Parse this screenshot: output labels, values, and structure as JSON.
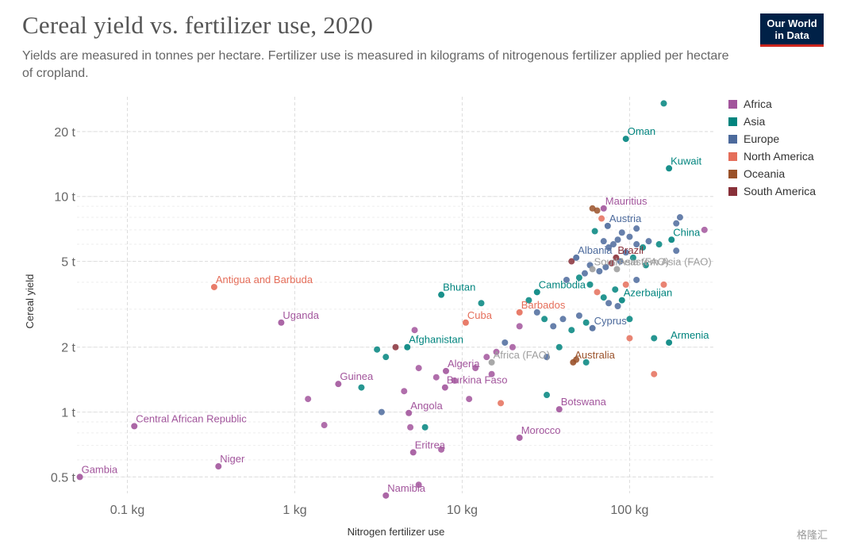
{
  "header": {
    "title": "Cereal yield vs. fertilizer use, 2020",
    "subtitle": "Yields are measured in tonnes per hectare. Fertilizer use is measured in kilograms of nitrogenous fertilizer applied per hectare of cropland.",
    "logo_line1": "Our World",
    "logo_line2": "in Data"
  },
  "watermark": "格隆汇",
  "colors": {
    "Africa": "#a2559c",
    "Asia": "#00847e",
    "Europe": "#4c6a9c",
    "North America": "#e56e5a",
    "Oceania": "#9a5129",
    "South America": "#883039",
    "Aggregate": "#9e9e9e"
  },
  "legend": [
    "Africa",
    "Asia",
    "Europe",
    "North America",
    "Oceania",
    "South America"
  ],
  "chart_data": {
    "type": "scatter",
    "xlabel": "Nitrogen fertilizer use",
    "ylabel": "Cereal yield",
    "x_scale": "log",
    "y_scale": "log",
    "xlim": [
      0.05,
      320
    ],
    "ylim": [
      0.42,
      29
    ],
    "x_ticks": [
      {
        "value": 0.1,
        "label": "0.1 kg"
      },
      {
        "value": 1,
        "label": "1 kg"
      },
      {
        "value": 10,
        "label": "10 kg"
      },
      {
        "value": 100,
        "label": "100 kg"
      }
    ],
    "y_ticks": [
      {
        "value": 0.5,
        "label": "0.5 t"
      },
      {
        "value": 1,
        "label": "1 t"
      },
      {
        "value": 2,
        "label": "2 t"
      },
      {
        "value": 5,
        "label": "5 t"
      },
      {
        "value": 10,
        "label": "10 t"
      },
      {
        "value": 20,
        "label": "20 t"
      }
    ],
    "grid": true,
    "legend_position": "top-right",
    "labeled_points": [
      {
        "label": "Oman",
        "x": 95,
        "y": 18.5,
        "group": "Asia"
      },
      {
        "label": "Kuwait",
        "x": 172,
        "y": 13.5,
        "group": "Asia"
      },
      {
        "label": "Mauritius",
        "x": 70,
        "y": 8.8,
        "group": "Africa"
      },
      {
        "label": "Austria",
        "x": 74,
        "y": 7.3,
        "group": "Europe"
      },
      {
        "label": "China",
        "x": 178,
        "y": 6.3,
        "group": "Asia"
      },
      {
        "label": "Albania",
        "x": 48,
        "y": 5.2,
        "group": "Europe"
      },
      {
        "label": "Brazil",
        "x": 83,
        "y": 5.2,
        "group": "South America"
      },
      {
        "label": "South-eastern Asia (FAO)",
        "x": 60,
        "y": 4.6,
        "group": "Aggregate"
      },
      {
        "label": "Asia (FAO)",
        "x": 84,
        "y": 4.6,
        "group": "Aggregate"
      },
      {
        "label": "Antigua and Barbuda",
        "x": 0.33,
        "y": 3.8,
        "group": "North America"
      },
      {
        "label": "Bhutan",
        "x": 7.5,
        "y": 3.5,
        "group": "Asia"
      },
      {
        "label": "Cambodia",
        "x": 28,
        "y": 3.6,
        "group": "Asia"
      },
      {
        "label": "Azerbaijan",
        "x": 90,
        "y": 3.3,
        "group": "Asia"
      },
      {
        "label": "Barbados",
        "x": 22,
        "y": 2.9,
        "group": "North America"
      },
      {
        "label": "Uganda",
        "x": 0.83,
        "y": 2.6,
        "group": "Africa"
      },
      {
        "label": "Cuba",
        "x": 10.5,
        "y": 2.6,
        "group": "North America"
      },
      {
        "label": "Cyprus",
        "x": 60,
        "y": 2.45,
        "group": "Europe"
      },
      {
        "label": "Armenia",
        "x": 172,
        "y": 2.1,
        "group": "Asia"
      },
      {
        "label": "Afghanistan",
        "x": 4.7,
        "y": 2.0,
        "group": "Asia"
      },
      {
        "label": "Africa (FAO)",
        "x": 15,
        "y": 1.7,
        "group": "Aggregate"
      },
      {
        "label": "Australia",
        "x": 46,
        "y": 1.7,
        "group": "Oceania"
      },
      {
        "label": "Algeria",
        "x": 8.0,
        "y": 1.55,
        "group": "Africa"
      },
      {
        "label": "Guinea",
        "x": 1.82,
        "y": 1.35,
        "group": "Africa"
      },
      {
        "label": "Burkina Faso",
        "x": 7.9,
        "y": 1.3,
        "group": "Africa"
      },
      {
        "label": "Angola",
        "x": 4.8,
        "y": 0.99,
        "group": "Africa"
      },
      {
        "label": "Botswana",
        "x": 38,
        "y": 1.03,
        "group": "Africa"
      },
      {
        "label": "Central African Republic",
        "x": 0.11,
        "y": 0.86,
        "group": "Africa"
      },
      {
        "label": "Morocco",
        "x": 22,
        "y": 0.76,
        "group": "Africa"
      },
      {
        "label": "Eritrea",
        "x": 5.1,
        "y": 0.65,
        "group": "Africa"
      },
      {
        "label": "Niger",
        "x": 0.35,
        "y": 0.56,
        "group": "Africa"
      },
      {
        "label": "Gambia",
        "x": 0.052,
        "y": 0.5,
        "group": "Africa"
      },
      {
        "label": "Namibia",
        "x": 3.5,
        "y": 0.41,
        "group": "Africa"
      }
    ],
    "points": [
      {
        "x": 160,
        "y": 27,
        "group": "Asia"
      },
      {
        "x": 200,
        "y": 8.0,
        "group": "Europe"
      },
      {
        "x": 190,
        "y": 7.5,
        "group": "Europe"
      },
      {
        "x": 280,
        "y": 7.0,
        "group": "Africa"
      },
      {
        "x": 190,
        "y": 5.6,
        "group": "Europe"
      },
      {
        "x": 150,
        "y": 6.0,
        "group": "Asia"
      },
      {
        "x": 130,
        "y": 6.2,
        "group": "Europe"
      },
      {
        "x": 110,
        "y": 6.0,
        "group": "Europe"
      },
      {
        "x": 100,
        "y": 6.5,
        "group": "Europe"
      },
      {
        "x": 90,
        "y": 6.8,
        "group": "Europe"
      },
      {
        "x": 85,
        "y": 6.3,
        "group": "Europe"
      },
      {
        "x": 80,
        "y": 6.0,
        "group": "Europe"
      },
      {
        "x": 75,
        "y": 5.8,
        "group": "Europe"
      },
      {
        "x": 70,
        "y": 6.2,
        "group": "Europe"
      },
      {
        "x": 62,
        "y": 6.9,
        "group": "Asia"
      },
      {
        "x": 60,
        "y": 8.8,
        "group": "Oceania"
      },
      {
        "x": 64,
        "y": 8.6,
        "group": "Oceania"
      },
      {
        "x": 68,
        "y": 7.9,
        "group": "North America"
      },
      {
        "x": 110,
        "y": 7.1,
        "group": "Europe"
      },
      {
        "x": 120,
        "y": 5.8,
        "group": "Asia"
      },
      {
        "x": 105,
        "y": 5.2,
        "group": "Asia"
      },
      {
        "x": 95,
        "y": 5.5,
        "group": "Europe"
      },
      {
        "x": 88,
        "y": 5.0,
        "group": "Europe"
      },
      {
        "x": 78,
        "y": 4.9,
        "group": "South America"
      },
      {
        "x": 72,
        "y": 4.7,
        "group": "Europe"
      },
      {
        "x": 66,
        "y": 4.5,
        "group": "Europe"
      },
      {
        "x": 58,
        "y": 4.8,
        "group": "Europe"
      },
      {
        "x": 54,
        "y": 4.4,
        "group": "Europe"
      },
      {
        "x": 50,
        "y": 4.2,
        "group": "Asia"
      },
      {
        "x": 45,
        "y": 5.0,
        "group": "South America"
      },
      {
        "x": 42,
        "y": 4.1,
        "group": "Europe"
      },
      {
        "x": 58,
        "y": 3.9,
        "group": "Asia"
      },
      {
        "x": 64,
        "y": 3.6,
        "group": "North America"
      },
      {
        "x": 70,
        "y": 3.4,
        "group": "Asia"
      },
      {
        "x": 75,
        "y": 3.2,
        "group": "Europe"
      },
      {
        "x": 82,
        "y": 3.7,
        "group": "Asia"
      },
      {
        "x": 95,
        "y": 3.9,
        "group": "North America"
      },
      {
        "x": 110,
        "y": 4.1,
        "group": "Europe"
      },
      {
        "x": 160,
        "y": 3.9,
        "group": "North America"
      },
      {
        "x": 125,
        "y": 4.8,
        "group": "Asia"
      },
      {
        "x": 100,
        "y": 2.7,
        "group": "Asia"
      },
      {
        "x": 85,
        "y": 3.1,
        "group": "Europe"
      },
      {
        "x": 55,
        "y": 2.6,
        "group": "Asia"
      },
      {
        "x": 50,
        "y": 2.8,
        "group": "Europe"
      },
      {
        "x": 45,
        "y": 2.4,
        "group": "Asia"
      },
      {
        "x": 40,
        "y": 2.7,
        "group": "Europe"
      },
      {
        "x": 35,
        "y": 2.5,
        "group": "Europe"
      },
      {
        "x": 31,
        "y": 2.7,
        "group": "Asia"
      },
      {
        "x": 28,
        "y": 2.9,
        "group": "Europe"
      },
      {
        "x": 25,
        "y": 3.3,
        "group": "Asia"
      },
      {
        "x": 22,
        "y": 2.5,
        "group": "Africa"
      },
      {
        "x": 20,
        "y": 2.0,
        "group": "Africa"
      },
      {
        "x": 18,
        "y": 2.1,
        "group": "Europe"
      },
      {
        "x": 16,
        "y": 1.9,
        "group": "Africa"
      },
      {
        "x": 14,
        "y": 1.8,
        "group": "Africa"
      },
      {
        "x": 13,
        "y": 3.2,
        "group": "Asia"
      },
      {
        "x": 32,
        "y": 1.8,
        "group": "Europe"
      },
      {
        "x": 38,
        "y": 2.0,
        "group": "Asia"
      },
      {
        "x": 48,
        "y": 1.75,
        "group": "Oceania"
      },
      {
        "x": 55,
        "y": 1.7,
        "group": "Asia"
      },
      {
        "x": 100,
        "y": 2.2,
        "group": "North America"
      },
      {
        "x": 140,
        "y": 2.2,
        "group": "Asia"
      },
      {
        "x": 140,
        "y": 1.5,
        "group": "North America"
      },
      {
        "x": 32,
        "y": 1.2,
        "group": "Asia"
      },
      {
        "x": 17,
        "y": 1.1,
        "group": "North America"
      },
      {
        "x": 15,
        "y": 1.5,
        "group": "Africa"
      },
      {
        "x": 12,
        "y": 1.6,
        "group": "Africa"
      },
      {
        "x": 11,
        "y": 1.15,
        "group": "Africa"
      },
      {
        "x": 9,
        "y": 1.4,
        "group": "Africa"
      },
      {
        "x": 7,
        "y": 1.45,
        "group": "Africa"
      },
      {
        "x": 5.5,
        "y": 1.6,
        "group": "Africa"
      },
      {
        "x": 5.2,
        "y": 2.4,
        "group": "Africa"
      },
      {
        "x": 4.0,
        "y": 2.0,
        "group": "South America"
      },
      {
        "x": 3.5,
        "y": 1.8,
        "group": "Asia"
      },
      {
        "x": 4.5,
        "y": 1.25,
        "group": "Africa"
      },
      {
        "x": 3.3,
        "y": 1.0,
        "group": "Europe"
      },
      {
        "x": 6.0,
        "y": 0.85,
        "group": "Asia"
      },
      {
        "x": 4.9,
        "y": 0.85,
        "group": "Africa"
      },
      {
        "x": 2.5,
        "y": 1.3,
        "group": "Asia"
      },
      {
        "x": 1.2,
        "y": 1.15,
        "group": "Africa"
      },
      {
        "x": 1.5,
        "y": 0.87,
        "group": "Africa"
      },
      {
        "x": 7.5,
        "y": 0.67,
        "group": "Africa"
      },
      {
        "x": 5.5,
        "y": 0.46,
        "group": "Africa"
      },
      {
        "x": 3.1,
        "y": 1.95,
        "group": "Asia"
      }
    ]
  }
}
